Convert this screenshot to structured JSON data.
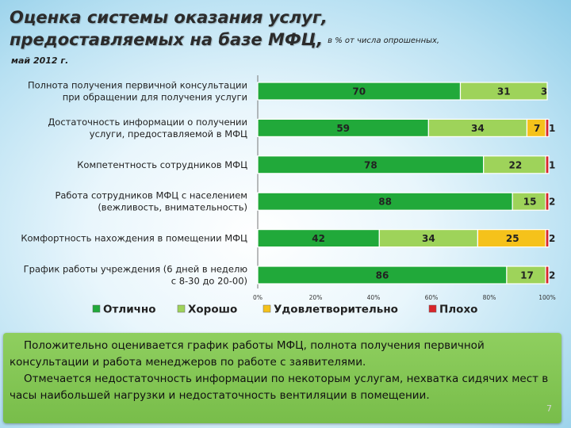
{
  "slide": {
    "title_line1": "Оценка системы оказания услуг,",
    "title_line2": "предоставляемых на базе МФЦ,",
    "title_note": "в % от числа опрошенных,",
    "date": "май 2012 г.",
    "page_number": "7"
  },
  "chart_data": {
    "type": "bar",
    "orientation": "horizontal",
    "stacked": true,
    "categories": [
      [
        "Полнота получения первичной консультации",
        "при обращении для получения услуги"
      ],
      [
        "Достаточность информации о получении",
        "услуги, предоставляемой в МФЦ"
      ],
      [
        "Компетентность сотрудников МФЦ"
      ],
      [
        "Работа сотрудников МФЦ с населением",
        "(вежливость, внимательность)"
      ],
      [
        "Комфортность нахождения в помещении МФЦ"
      ],
      [
        "График работы учреждения (6 дней в неделю",
        "с 8-30 до 20-00)"
      ]
    ],
    "series": [
      {
        "name": "Отлично",
        "color": "#21a93a",
        "values": [
          70,
          59,
          78,
          88,
          42,
          86
        ]
      },
      {
        "name": "Хорошо",
        "color": "#9ed35a",
        "values": [
          31,
          34,
          22,
          15,
          34,
          17
        ]
      },
      {
        "name": "Удовлетворительно",
        "color": "#f5c21b",
        "values": [
          3,
          7,
          0,
          0,
          25,
          0
        ]
      },
      {
        "name": "Плохо",
        "color": "#d8262b",
        "values": [
          0,
          1,
          1,
          2,
          2,
          2
        ]
      }
    ],
    "labels": [
      [
        "70",
        "31",
        "3",
        ""
      ],
      [
        "59",
        "34",
        "7",
        "1"
      ],
      [
        "78",
        "22",
        "",
        "1"
      ],
      [
        "88",
        "15",
        "",
        "2"
      ],
      [
        "42",
        "34",
        "25",
        "2"
      ],
      [
        "86",
        "17",
        "",
        "2"
      ]
    ],
    "xlim": [
      0,
      100
    ],
    "xticks": [
      "0%",
      "20%",
      "40%",
      "60%",
      "80%",
      "100%"
    ],
    "legend_position": "bottom"
  },
  "note": {
    "p1": "Положительно оценивается график работы МФЦ, полнота получения первичной консультации и работа менеджеров по работе с заявителями.",
    "p2": "Отмечается недостаточность информации по некоторым услугам, нехватка сидячих мест в часы наибольшей нагрузки и недостаточность вентиляции в помещении."
  }
}
